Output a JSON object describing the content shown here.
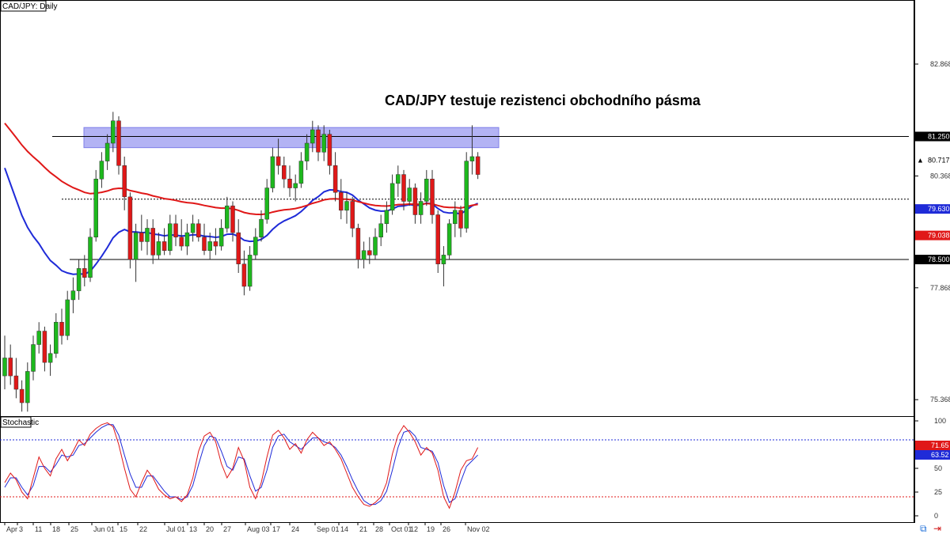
{
  "chart_data": {
    "type": "candlestick",
    "symbol_label": "CAD/JPY: Daily",
    "headline": "CAD/JPY testuje rezistenci obchodního pásma",
    "price_axis": {
      "range": [
        75.0,
        84.3
      ],
      "ticks": [
        "82.868",
        "80.368",
        "77.868",
        "75.368"
      ]
    },
    "date_ticks": [
      "Apr",
      "3",
      "11",
      "18",
      "25",
      "Jun 01",
      "15",
      "22",
      "Jul 01",
      "13",
      "20",
      "27",
      "Aug 03",
      "17",
      "24",
      "Sep 01",
      "14",
      "21",
      "28",
      "Oct 01",
      "12",
      "19",
      "26",
      "Nov 02"
    ],
    "price_tags": [
      {
        "value": "81.250",
        "bg": "#000000",
        "fg": "#ffffff"
      },
      {
        "value": "80.717",
        "bg": "#ffffff",
        "fg": "#000000"
      },
      {
        "value": "79.630",
        "bg": "#1f2bd8",
        "fg": "#ffffff"
      },
      {
        "value": "79.038",
        "bg": "#e01818",
        "fg": "#ffffff"
      },
      {
        "value": "78.500",
        "bg": "#000000",
        "fg": "#ffffff"
      }
    ],
    "levels": {
      "resistance_zone": [
        81.0,
        81.45
      ],
      "resistance_line": 81.25,
      "mid_dotted": 79.85,
      "support_line": 78.5
    },
    "colors": {
      "bull": "#1db81d",
      "bear": "#e01818",
      "ma_fast": "#1f2bd8",
      "ma_slow": "#e01818",
      "zone": "#9999f0",
      "stoch_k": "#e01818",
      "stoch_d": "#1f2bd8"
    },
    "candles": [
      [
        75.9,
        76.8,
        75.6,
        76.3
      ],
      [
        76.3,
        76.6,
        75.7,
        75.9
      ],
      [
        75.9,
        76.3,
        75.4,
        75.6
      ],
      [
        75.6,
        75.8,
        75.1,
        75.3
      ],
      [
        75.3,
        76.2,
        75.1,
        76.0
      ],
      [
        76.0,
        76.8,
        75.8,
        76.6
      ],
      [
        76.6,
        77.1,
        76.4,
        76.9
      ],
      [
        76.9,
        77.0,
        76.0,
        76.2
      ],
      [
        76.2,
        76.6,
        75.9,
        76.4
      ],
      [
        76.4,
        77.3,
        76.3,
        77.1
      ],
      [
        77.1,
        77.4,
        76.6,
        76.8
      ],
      [
        76.8,
        77.8,
        76.7,
        77.6
      ],
      [
        77.6,
        78.1,
        77.3,
        77.8
      ],
      [
        77.8,
        78.5,
        77.6,
        78.3
      ],
      [
        78.3,
        78.6,
        77.9,
        78.1
      ],
      [
        78.1,
        79.2,
        78.0,
        79.0
      ],
      [
        79.0,
        80.5,
        78.9,
        80.3
      ],
      [
        80.3,
        80.9,
        80.1,
        80.7
      ],
      [
        80.7,
        81.3,
        80.5,
        81.1
      ],
      [
        81.1,
        81.8,
        80.9,
        81.6
      ],
      [
        81.6,
        81.7,
        80.4,
        80.6
      ],
      [
        80.6,
        80.8,
        79.6,
        79.9
      ],
      [
        79.9,
        80.0,
        78.3,
        78.5
      ],
      [
        78.5,
        79.3,
        78.0,
        79.1
      ],
      [
        79.1,
        79.5,
        78.7,
        78.9
      ],
      [
        78.9,
        79.4,
        78.6,
        79.2
      ],
      [
        79.2,
        79.4,
        78.4,
        78.6
      ],
      [
        78.6,
        79.1,
        78.5,
        78.9
      ],
      [
        78.9,
        79.2,
        78.6,
        78.7
      ],
      [
        78.7,
        79.5,
        78.6,
        79.3
      ],
      [
        79.3,
        79.5,
        78.8,
        79.0
      ],
      [
        79.0,
        79.4,
        78.7,
        78.8
      ],
      [
        78.8,
        79.3,
        78.6,
        79.1
      ],
      [
        79.1,
        79.5,
        78.9,
        79.3
      ],
      [
        79.3,
        79.4,
        78.9,
        79.0
      ],
      [
        79.0,
        79.3,
        78.6,
        78.7
      ],
      [
        78.7,
        79.1,
        78.5,
        78.9
      ],
      [
        78.9,
        79.2,
        78.6,
        78.8
      ],
      [
        78.8,
        79.4,
        78.7,
        79.2
      ],
      [
        79.2,
        79.9,
        79.1,
        79.7
      ],
      [
        79.7,
        79.8,
        78.9,
        79.1
      ],
      [
        79.1,
        79.4,
        78.2,
        78.4
      ],
      [
        78.4,
        78.7,
        77.7,
        77.9
      ],
      [
        77.9,
        78.8,
        77.8,
        78.6
      ],
      [
        78.6,
        79.2,
        78.5,
        79.0
      ],
      [
        79.0,
        79.6,
        78.9,
        79.4
      ],
      [
        79.4,
        80.3,
        79.3,
        80.1
      ],
      [
        80.1,
        81.0,
        80.0,
        80.8
      ],
      [
        80.8,
        81.2,
        80.4,
        80.6
      ],
      [
        80.6,
        80.8,
        80.1,
        80.3
      ],
      [
        80.3,
        80.6,
        79.9,
        80.1
      ],
      [
        80.1,
        80.4,
        79.8,
        80.2
      ],
      [
        80.2,
        80.9,
        80.1,
        80.7
      ],
      [
        80.7,
        81.3,
        80.5,
        81.1
      ],
      [
        81.1,
        81.6,
        80.9,
        81.4
      ],
      [
        81.4,
        81.5,
        80.7,
        80.9
      ],
      [
        80.9,
        81.5,
        80.7,
        81.3
      ],
      [
        81.3,
        81.4,
        80.4,
        80.6
      ],
      [
        80.6,
        80.9,
        79.8,
        80.0
      ],
      [
        80.0,
        80.3,
        79.4,
        79.6
      ],
      [
        79.6,
        80.0,
        79.3,
        79.8
      ],
      [
        79.8,
        79.9,
        79.0,
        79.2
      ],
      [
        79.2,
        79.3,
        78.3,
        78.5
      ],
      [
        78.5,
        78.9,
        78.3,
        78.7
      ],
      [
        78.7,
        79.0,
        78.4,
        78.6
      ],
      [
        78.6,
        79.2,
        78.5,
        79.0
      ],
      [
        79.0,
        79.5,
        78.8,
        79.3
      ],
      [
        79.3,
        79.8,
        79.1,
        79.6
      ],
      [
        79.6,
        80.4,
        79.5,
        80.2
      ],
      [
        80.2,
        80.6,
        79.9,
        80.4
      ],
      [
        80.4,
        80.5,
        79.6,
        79.8
      ],
      [
        79.8,
        80.3,
        79.7,
        80.1
      ],
      [
        80.1,
        80.2,
        79.3,
        79.5
      ],
      [
        79.5,
        80.0,
        79.3,
        79.8
      ],
      [
        79.8,
        80.5,
        79.7,
        80.3
      ],
      [
        80.3,
        80.5,
        79.3,
        79.5
      ],
      [
        79.5,
        79.6,
        78.2,
        78.4
      ],
      [
        78.4,
        78.8,
        77.9,
        78.6
      ],
      [
        78.6,
        79.4,
        78.5,
        79.3
      ],
      [
        79.3,
        79.8,
        79.0,
        79.6
      ],
      [
        79.6,
        79.7,
        79.0,
        79.2
      ],
      [
        79.2,
        80.9,
        79.1,
        80.7
      ],
      [
        80.7,
        81.5,
        80.4,
        80.8
      ],
      [
        80.8,
        80.9,
        80.3,
        80.4
      ]
    ],
    "stochastic": {
      "title": "Stochastic",
      "levels": [
        "100",
        "75",
        "50",
        "25",
        "0"
      ],
      "value_tags": [
        {
          "value": "71.65",
          "bg": "#e01818",
          "fg": "#ffffff"
        },
        {
          "value": "63.52",
          "bg": "#1f2bd8",
          "fg": "#ffffff"
        }
      ],
      "k": [
        35,
        45,
        38,
        25,
        18,
        40,
        62,
        50,
        42,
        60,
        70,
        58,
        68,
        80,
        74,
        86,
        92,
        96,
        98,
        94,
        75,
        50,
        28,
        20,
        35,
        48,
        40,
        28,
        22,
        18,
        20,
        15,
        22,
        40,
        68,
        84,
        88,
        78,
        55,
        40,
        50,
        72,
        58,
        30,
        18,
        35,
        62,
        85,
        90,
        82,
        70,
        76,
        66,
        80,
        88,
        82,
        74,
        78,
        70,
        60,
        45,
        30,
        20,
        12,
        10,
        14,
        20,
        35,
        65,
        85,
        95,
        88,
        78,
        64,
        72,
        66,
        48,
        20,
        8,
        25,
        48,
        58,
        60,
        72
      ],
      "d": [
        30,
        40,
        40,
        30,
        22,
        32,
        52,
        52,
        46,
        54,
        64,
        62,
        64,
        74,
        76,
        82,
        88,
        93,
        96,
        96,
        85,
        64,
        44,
        30,
        30,
        42,
        42,
        34,
        26,
        20,
        20,
        17,
        20,
        32,
        54,
        74,
        84,
        82,
        68,
        52,
        48,
        62,
        60,
        42,
        26,
        30,
        48,
        72,
        84,
        86,
        78,
        74,
        70,
        76,
        82,
        82,
        78,
        76,
        72,
        64,
        52,
        38,
        26,
        16,
        12,
        12,
        16,
        26,
        48,
        72,
        88,
        90,
        84,
        72,
        70,
        68,
        56,
        32,
        14,
        18,
        36,
        52,
        58,
        64
      ]
    }
  }
}
